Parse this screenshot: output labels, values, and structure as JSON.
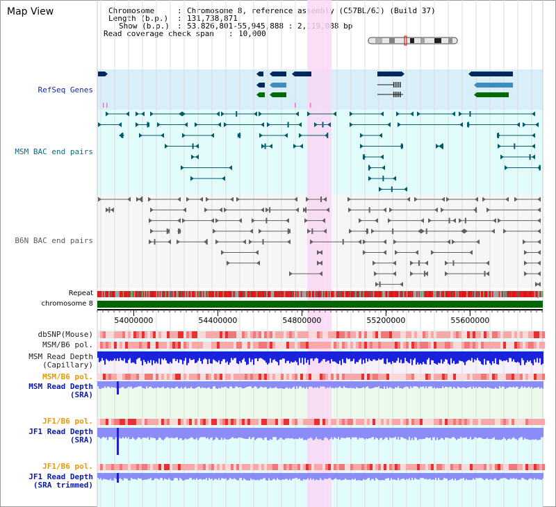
{
  "window": {
    "title": "Map View"
  },
  "info": {
    "chromosome_key": "Chromosome",
    "chromosome_value": "Chromosome 8, reference assembly (C57BL/6J) (Build 37)",
    "length_key": "Length (b.p.)",
    "length_value": "131,738,871",
    "show_key": "Show (b.p.)",
    "show_value": "53,826,801-55,945,888 : 2,119,088 bp",
    "coverage_key": "Read coverage check span",
    "coverage_value": "10,000"
  },
  "tracks": {
    "refseq": "RefSeq Genes",
    "msm_bac": "MSM BAC end pairs",
    "b6n_bac": "B6N BAC end pairs",
    "repeat": "Repeat",
    "chromosome": "chromosome 8",
    "dbsnp": "dbSNP(Mouse)",
    "msm_b6_pol_1": "MSM/B6 pol.",
    "msm_depth_cap_1": "MSM Read Depth",
    "msm_depth_cap_2": "(Capillary)",
    "msm_b6_pol_2": "MSM/B6 pol.",
    "msm_depth_sra_1": "MSM Read Depth",
    "msm_depth_sra_2": "(SRA)",
    "jf1_pol_1": "JF1/B6 pol.",
    "jf1_depth_sra_1": "JF1 Read Depth",
    "jf1_depth_sra_2": "(SRA)",
    "jf1_pol_2": "JF1/B6 pol.",
    "jf1_depth_trim_1": "JF1 Read Depth",
    "jf1_depth_trim_2": "(SRA trimmed)"
  },
  "axis": {
    "ticks": [
      "54000000",
      "54400000",
      "54800000",
      "55200000",
      "55600000"
    ],
    "tick_values": [
      54000000,
      54400000,
      54800000,
      55200000,
      55600000
    ],
    "range": [
      53826801,
      55945888
    ],
    "highlight_range": [
      54800000,
      54925000
    ]
  },
  "colors": {
    "refseq_bg": "#d8eef8",
    "bac_bg": "#e2fcfc",
    "b6n_bg": "#f6f6f6",
    "highlight": "#f8d8f4",
    "repeat_red": "#d81818",
    "chromosome_green": "#006600",
    "gene_navy": "#00285a",
    "gene_blue": "#3c8cc0",
    "gene_green": "#006a00",
    "msm_line": "#005a6a",
    "b6n_line": "#606060",
    "depth_blue": "#1a22dc",
    "depth_light": "#8c8cf8",
    "pol_red": "#f07878",
    "label_navy": "#1428a0",
    "label_orange": "#e69a00"
  }
}
